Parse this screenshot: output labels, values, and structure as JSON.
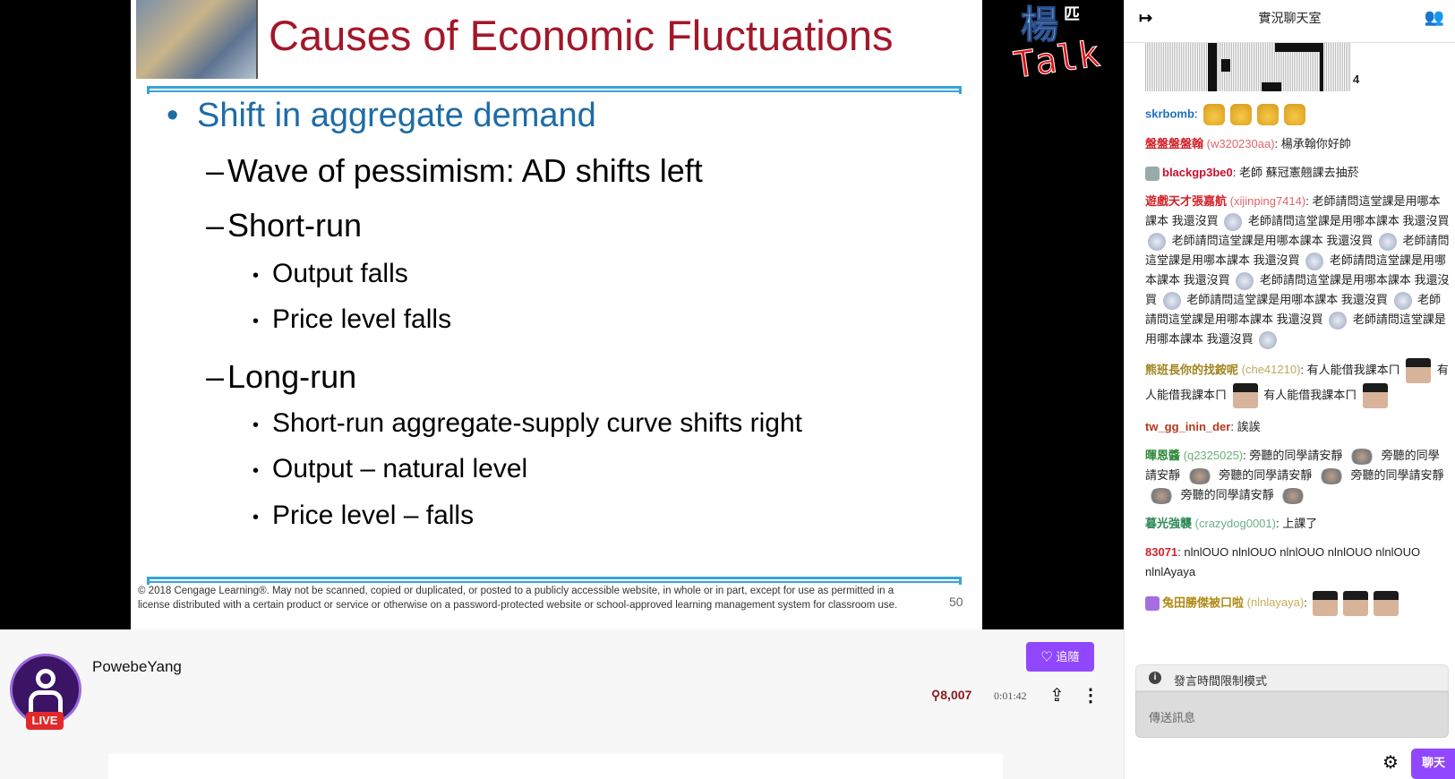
{
  "slide": {
    "title": "Causes of Economic Fluctuations",
    "lines": [
      {
        "level": 1,
        "marker": "•",
        "text": "Shift in aggregate demand"
      },
      {
        "level": 2,
        "marker": "–",
        "text": "Wave of pessimism: AD shifts left"
      },
      {
        "level": 2,
        "marker": "–",
        "text": "Short-run"
      },
      {
        "level": 3,
        "marker": "•",
        "text": "Output falls"
      },
      {
        "level": 3,
        "marker": "•",
        "text": "Price level falls"
      },
      {
        "level": 2,
        "marker": "–",
        "text": "Long-run"
      },
      {
        "level": 3,
        "marker": "•",
        "text": "Short-run aggregate-supply curve shifts right"
      },
      {
        "level": 3,
        "marker": "•",
        "text": "Output – natural level"
      },
      {
        "level": 3,
        "marker": "•",
        "text": "Price level – falls"
      }
    ],
    "footer": "© 2018 Cengage Learning®. May not be scanned, copied or duplicated, or posted to a publicly accessible website, in whole or in part, except for use as permitted in a license distributed with a certain product or service or otherwise on a password-protected website or school-approved learning management system for classroom use.",
    "page_number": "50",
    "title_color": "#a3172a",
    "accent_color": "#39a5d6"
  },
  "overlay_logo": {
    "cn": "楊",
    "small": "匹",
    "en": "Talk"
  },
  "chat": {
    "title": "實況聊天室",
    "art_suffix": "4",
    "messages": [
      {
        "user": "skrbomb",
        "id": "",
        "text": "",
        "color": "#1e6fc2",
        "emotes": [
          "cheese",
          "cheese",
          "cheese",
          "cheese"
        ]
      },
      {
        "user": "盤盤盤盤翰",
        "id": "(w320230aa)",
        "text": "楊承翰你好帥",
        "color": "#d2232a"
      },
      {
        "user": "blackgp3be0",
        "id": "",
        "text": "老師 蘇冠憲翹課去抽菸",
        "color": "#c8102e",
        "badge": true
      },
      {
        "user": "遊戲天才張嘉航",
        "id": "(xijinping7414)",
        "text": "老師請問這堂課是用哪本課本 我還沒買",
        "repeat": 9,
        "emote": "sad",
        "color": "#d2232a"
      },
      {
        "user": "熊班長你的找銨呢",
        "id": "(che41210)",
        "text": "有人能借我課本ㄇ",
        "repeat": 3,
        "emote": "face",
        "color": "#a0841c"
      },
      {
        "user": "tw_gg_inin_der",
        "id": "",
        "text": "誒誒",
        "color": "#b5361b"
      },
      {
        "user": "暉恩醬",
        "id": "(q2325025)",
        "text": "旁聽的同學請安靜",
        "repeat": 5,
        "emote": "shy",
        "color": "#2e8b3a"
      },
      {
        "user": "暮光強襲",
        "id": "(crazydog0001)",
        "text": "上課了",
        "color": "#2e8b57"
      },
      {
        "user": "83071",
        "id": "",
        "text": "nlnlOUO nlnlOUO nlnlOUO nlnlOUO nlnlOUO nlnlAyaya",
        "color": "#d2232a"
      },
      {
        "user": "兔田勝傑被口啦",
        "id": "(nlnlayaya)",
        "text": "",
        "color": "#b08a14",
        "badge": true,
        "emotes": [
          "face",
          "face",
          "face"
        ]
      }
    ],
    "notice": "發言時間限制模式",
    "input_placeholder": "傳送訊息",
    "send_label": "聊天"
  },
  "channel": {
    "name": "PowebeYang",
    "live_label": "LIVE",
    "follow_label": "追隨",
    "viewers": "8,007",
    "uptime": "0:01:42",
    "brand_color": "#9147ff"
  }
}
